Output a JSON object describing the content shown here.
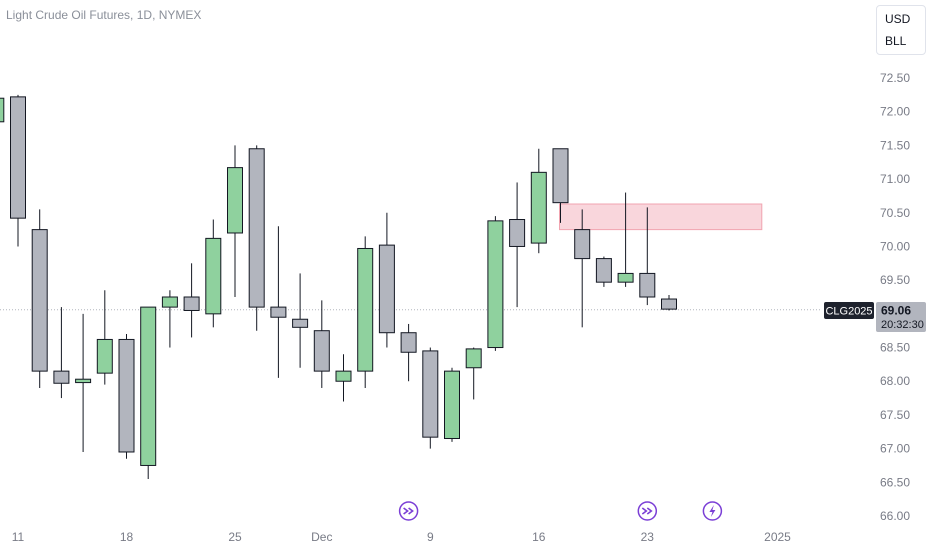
{
  "header": {
    "title": "Light Crude Oil Futures, 1D, NYMEX"
  },
  "units": {
    "currency": "USD",
    "unit": "BLL"
  },
  "price_label": {
    "symbol": "CLG2025",
    "price": "69.06",
    "countdown": "20:32:30"
  },
  "colors": {
    "up": "#8fd19e",
    "down": "#b2b5be",
    "zone": "#f9d6dc",
    "zone_border": "#f1a4b0",
    "event": "#7b3fd6",
    "symbol_bg": "#1e222d"
  },
  "events": [
    {
      "x": 18,
      "icon": "double-chevron-icon"
    },
    {
      "x": 29,
      "icon": "double-chevron-icon"
    },
    {
      "x": 32,
      "icon": "lightning-icon"
    }
  ],
  "chart_data": {
    "type": "candlestick",
    "title": "Light Crude Oil Futures, 1D, NYMEX",
    "y_axis": {
      "min": 66.0,
      "max": 72.5,
      "ticks": [
        "66.00",
        "66.50",
        "67.00",
        "67.50",
        "68.00",
        "68.50",
        "69.00",
        "69.50",
        "70.00",
        "70.50",
        "71.00",
        "71.50",
        "72.00",
        "72.50"
      ],
      "side": "right"
    },
    "x_axis": {
      "ticks": [
        {
          "x": 0,
          "label": "11"
        },
        {
          "x": 5,
          "label": "18"
        },
        {
          "x": 10,
          "label": "25"
        },
        {
          "x": 14,
          "label": "Dec"
        },
        {
          "x": 19,
          "label": "9"
        },
        {
          "x": 24,
          "label": "16"
        },
        {
          "x": 29,
          "label": "23"
        },
        {
          "x": 35,
          "label": "2025"
        }
      ]
    },
    "last_price": 69.06,
    "candles": [
      {
        "x": -1,
        "o": 71.85,
        "h": 72.22,
        "l": 71.7,
        "c": 72.2
      },
      {
        "x": 0,
        "o": 72.22,
        "h": 72.25,
        "l": 70.0,
        "c": 70.42
      },
      {
        "x": 1,
        "o": 70.25,
        "h": 70.55,
        "l": 67.9,
        "c": 68.15
      },
      {
        "x": 2,
        "o": 68.15,
        "h": 69.1,
        "l": 67.75,
        "c": 67.97
      },
      {
        "x": 3,
        "o": 67.98,
        "h": 69.0,
        "l": 66.95,
        "c": 68.03
      },
      {
        "x": 4,
        "o": 68.12,
        "h": 69.35,
        "l": 67.95,
        "c": 68.62
      },
      {
        "x": 5,
        "o": 68.62,
        "h": 68.7,
        "l": 66.85,
        "c": 66.95
      },
      {
        "x": 6,
        "o": 66.75,
        "h": 69.1,
        "l": 66.55,
        "c": 69.1
      },
      {
        "x": 7,
        "o": 69.1,
        "h": 69.35,
        "l": 68.5,
        "c": 69.25
      },
      {
        "x": 8,
        "o": 69.25,
        "h": 69.75,
        "l": 68.65,
        "c": 69.05
      },
      {
        "x": 9,
        "o": 69.0,
        "h": 70.4,
        "l": 68.8,
        "c": 70.12
      },
      {
        "x": 10,
        "o": 70.2,
        "h": 71.5,
        "l": 69.25,
        "c": 71.17
      },
      {
        "x": 11,
        "o": 71.45,
        "h": 71.5,
        "l": 68.75,
        "c": 69.1
      },
      {
        "x": 12,
        "o": 69.1,
        "h": 70.3,
        "l": 68.05,
        "c": 68.95
      },
      {
        "x": 13,
        "o": 68.92,
        "h": 69.6,
        "l": 68.2,
        "c": 68.8
      },
      {
        "x": 14,
        "o": 68.75,
        "h": 69.2,
        "l": 67.9,
        "c": 68.15
      },
      {
        "x": 15,
        "o": 68.0,
        "h": 68.4,
        "l": 67.7,
        "c": 68.15
      },
      {
        "x": 16,
        "o": 68.15,
        "h": 70.15,
        "l": 67.9,
        "c": 69.97
      },
      {
        "x": 17,
        "o": 70.02,
        "h": 70.5,
        "l": 68.5,
        "c": 68.72
      },
      {
        "x": 18,
        "o": 68.72,
        "h": 68.85,
        "l": 68.0,
        "c": 68.43
      },
      {
        "x": 19,
        "o": 68.45,
        "h": 68.5,
        "l": 67.0,
        "c": 67.17
      },
      {
        "x": 20,
        "o": 67.15,
        "h": 68.2,
        "l": 67.1,
        "c": 68.15
      },
      {
        "x": 21,
        "o": 68.2,
        "h": 68.5,
        "l": 67.73,
        "c": 68.48
      },
      {
        "x": 22,
        "o": 68.5,
        "h": 70.45,
        "l": 68.45,
        "c": 70.38
      },
      {
        "x": 23,
        "o": 70.4,
        "h": 70.95,
        "l": 69.1,
        "c": 70.0
      },
      {
        "x": 24,
        "o": 70.05,
        "h": 71.45,
        "l": 69.9,
        "c": 71.1
      },
      {
        "x": 25,
        "o": 71.45,
        "h": 71.45,
        "l": 70.35,
        "c": 70.65
      },
      {
        "x": 26,
        "o": 70.25,
        "h": 70.55,
        "l": 68.8,
        "c": 69.82
      },
      {
        "x": 27,
        "o": 69.82,
        "h": 69.85,
        "l": 69.4,
        "c": 69.47
      },
      {
        "x": 28,
        "o": 69.47,
        "h": 70.8,
        "l": 69.4,
        "c": 69.6
      },
      {
        "x": 29,
        "o": 69.6,
        "h": 70.58,
        "l": 69.13,
        "c": 69.25
      },
      {
        "x": 30,
        "o": 69.22,
        "h": 69.28,
        "l": 69.05,
        "c": 69.07
      }
    ],
    "zone": {
      "x_from": 25,
      "x_to": 34,
      "y_low": 70.25,
      "y_high": 70.63
    }
  }
}
